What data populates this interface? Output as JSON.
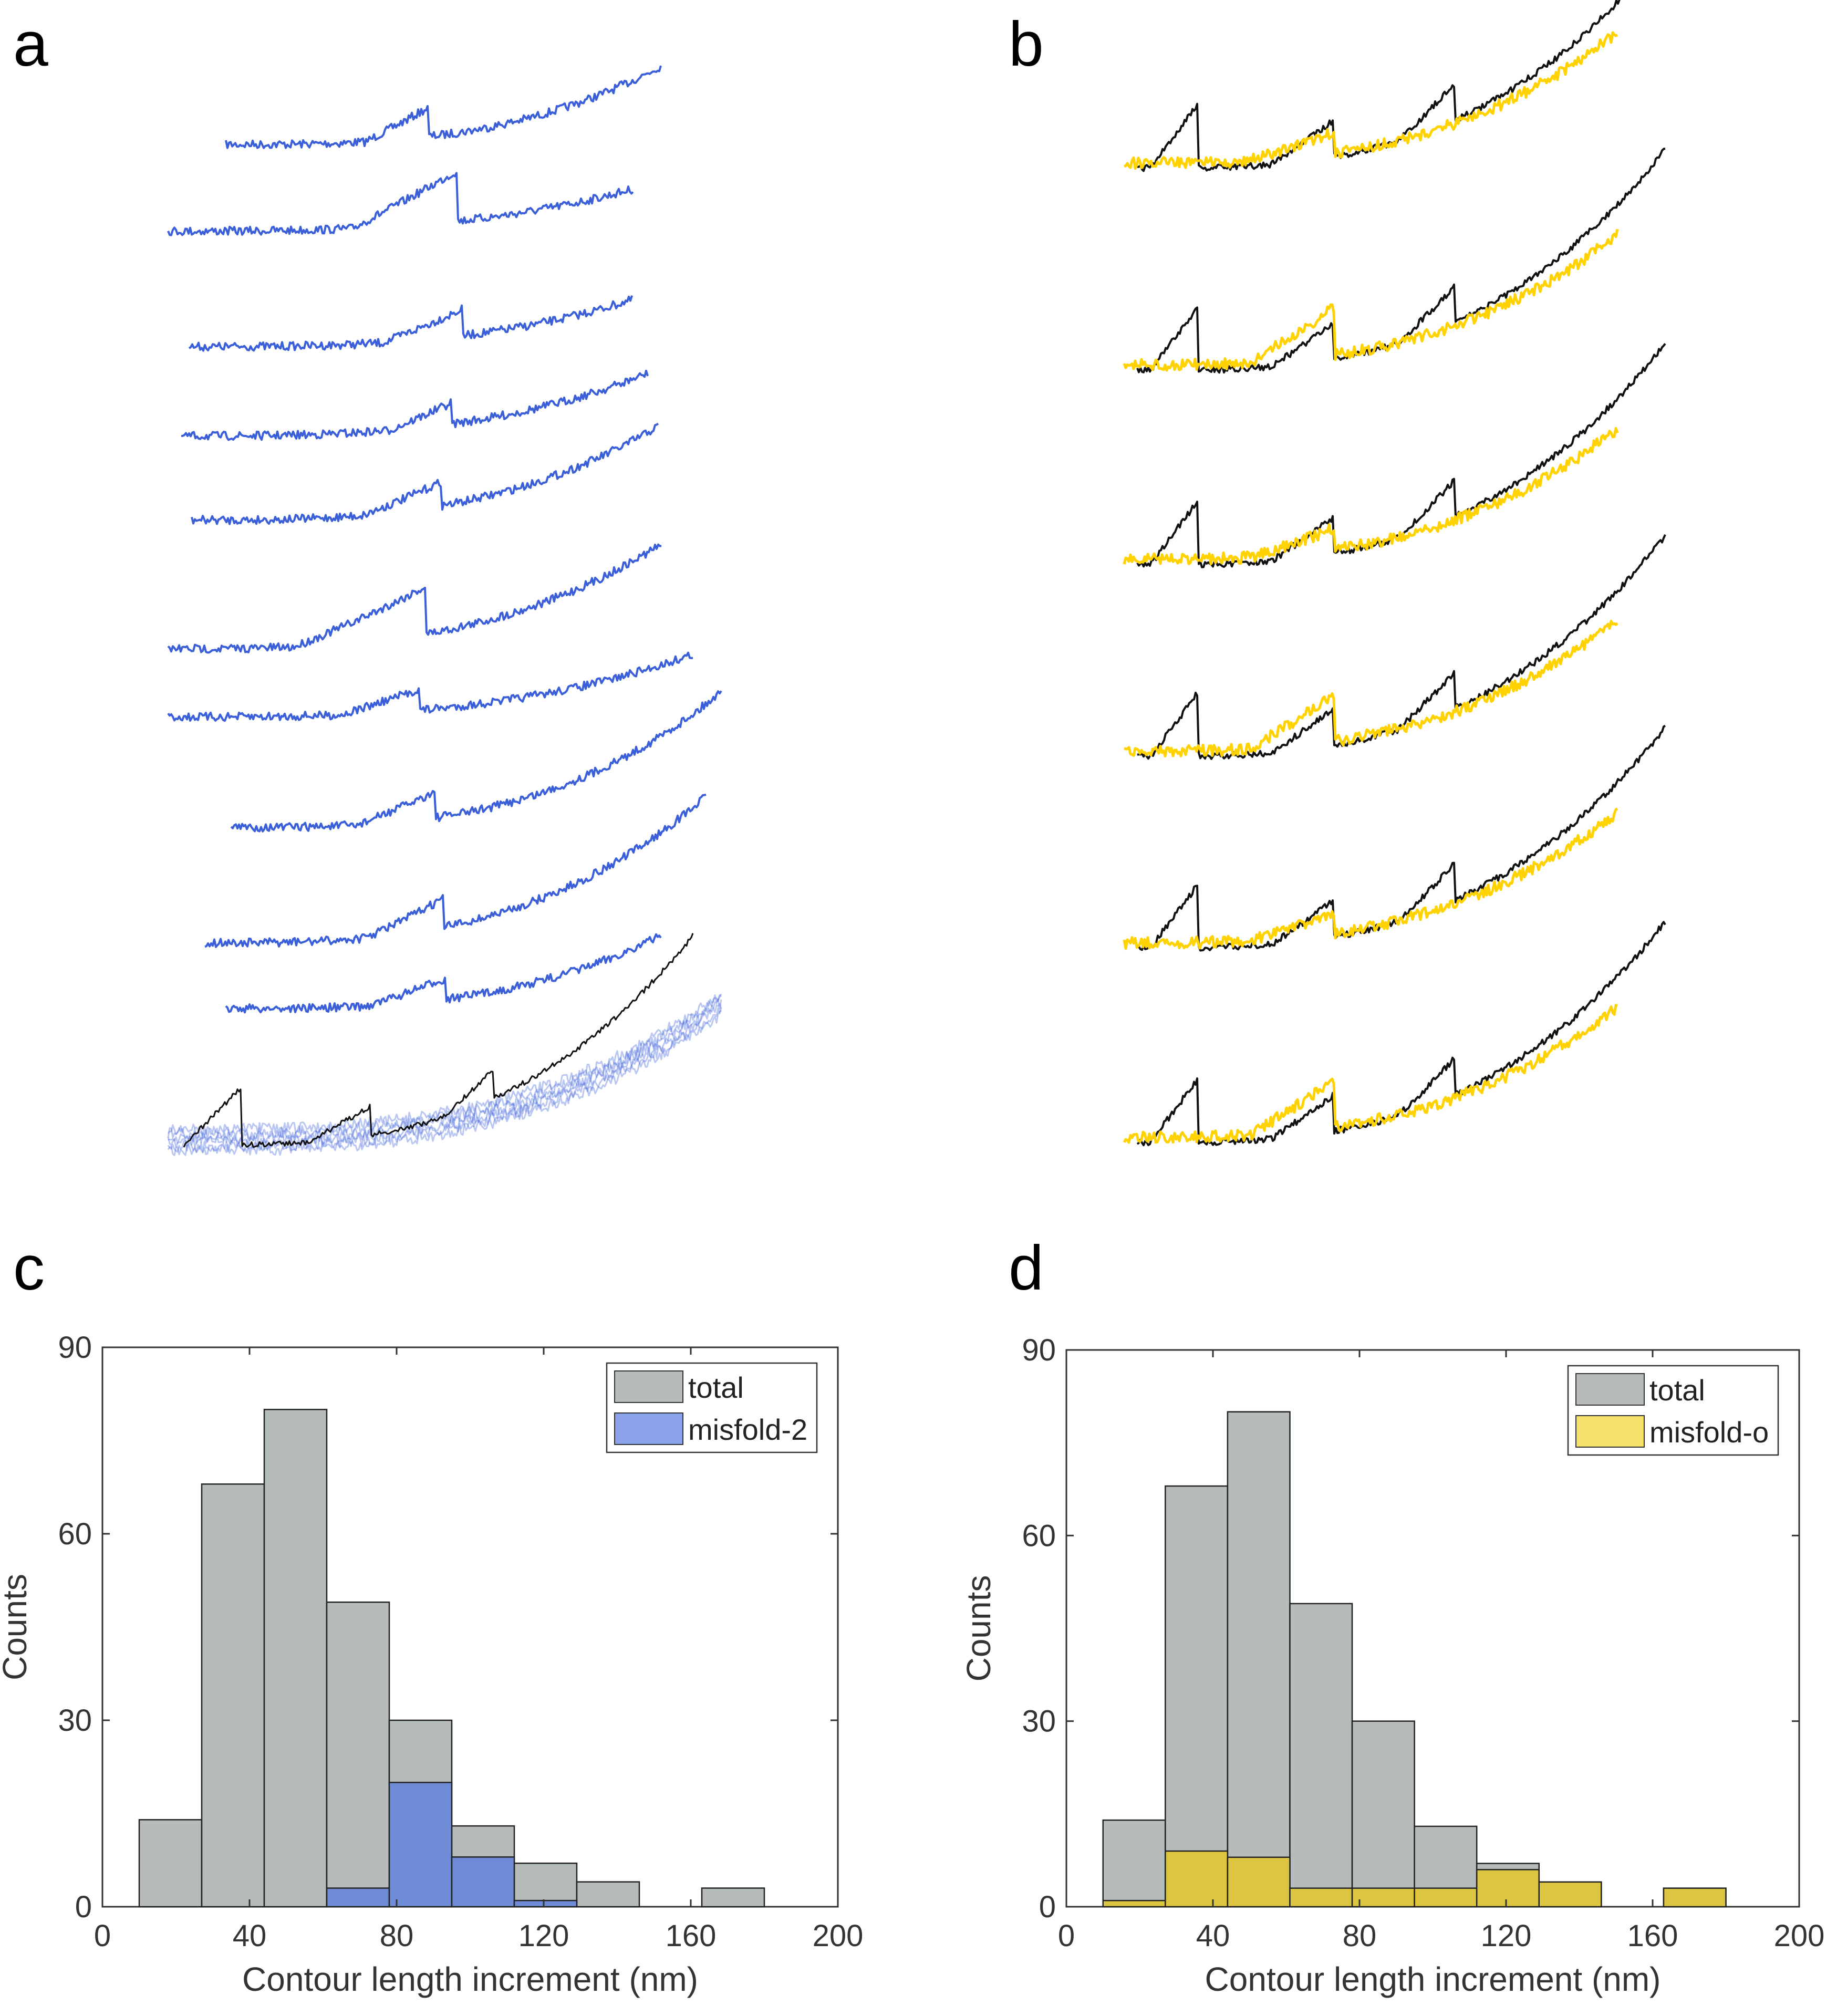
{
  "colors": {
    "blue_trace": "#3a5fd9",
    "yellow_trace": "#ffd200",
    "black_trace": "#111111",
    "total_bar": "#b6bcbb",
    "misfold2_bar": "#6f8bd6",
    "misfold2_legend": "#8aa2e8",
    "misfoldo_bar": "#dcc540",
    "misfoldo_legend": "#f5e06a"
  },
  "panels": {
    "a": {
      "label": "a"
    },
    "b": {
      "label": "b"
    },
    "c": {
      "label": "c"
    },
    "d": {
      "label": "d"
    }
  },
  "chart_data": [
    {
      "panel": "c",
      "type": "bar",
      "title": "",
      "xlabel": "Contour length increment (nm)",
      "ylabel": "Counts",
      "xlim": [
        0,
        200
      ],
      "ylim": [
        0,
        90
      ],
      "xticks": [
        0,
        40,
        80,
        120,
        160,
        200
      ],
      "yticks": [
        0,
        30,
        60,
        90
      ],
      "legend_position": "top-right",
      "bin_edges": [
        10,
        27,
        44,
        61,
        78,
        95,
        112,
        129,
        146,
        163,
        180
      ],
      "series": [
        {
          "name": "total",
          "values": [
            14,
            68,
            80,
            49,
            30,
            13,
            7,
            4,
            0,
            3
          ]
        },
        {
          "name": "misfold-2",
          "values": [
            0,
            0,
            0,
            3,
            20,
            8,
            1,
            0,
            0,
            0
          ]
        }
      ]
    },
    {
      "panel": "d",
      "type": "bar",
      "title": "",
      "xlabel": "Contour length increment (nm)",
      "ylabel": "Counts",
      "xlim": [
        0,
        200
      ],
      "ylim": [
        0,
        90
      ],
      "xticks": [
        0,
        40,
        80,
        120,
        160,
        200
      ],
      "yticks": [
        0,
        30,
        60,
        90
      ],
      "legend_position": "top-right",
      "bin_edges": [
        10,
        27,
        44,
        61,
        78,
        95,
        112,
        129,
        146,
        163,
        180
      ],
      "series": [
        {
          "name": "total",
          "values": [
            14,
            68,
            80,
            49,
            30,
            13,
            7,
            4,
            0,
            3
          ]
        },
        {
          "name": "misfold-o",
          "values": [
            1,
            9,
            8,
            3,
            3,
            3,
            6,
            4,
            0,
            3
          ]
        }
      ]
    }
  ]
}
